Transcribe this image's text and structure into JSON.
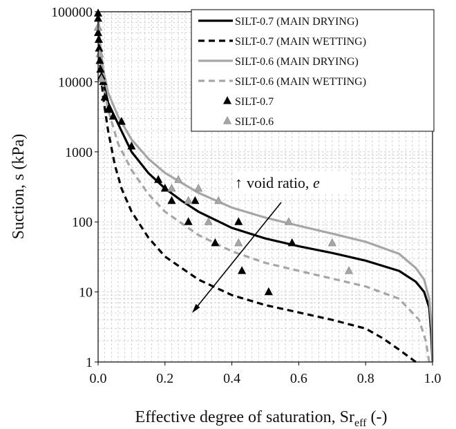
{
  "chart_data": {
    "type": "scatter",
    "xlabel": "Effective degree of saturation, Sr",
    "xlabel_sub": "eff",
    "xlabel_tail": " (-)",
    "ylabel": "Suction, s (kPa)",
    "xlim": [
      0,
      1
    ],
    "ylim": [
      1,
      100000
    ],
    "yscale": "log",
    "x_ticks": [
      "0.0",
      "0.2",
      "0.4",
      "0.6",
      "0.8",
      "1.0"
    ],
    "y_ticks": [
      "1",
      "10",
      "100",
      "1000",
      "10000",
      "100000"
    ],
    "grid": "dashed, vertical minor every 0.02, horizontal log minor",
    "legend_position": "top-right",
    "annotation": {
      "arrow": "↑",
      "text": "void ratio, ",
      "italic": "e"
    },
    "colors": {
      "silt07": "#000000",
      "silt06": "#a6a6a6",
      "grid": "#c8c8c8"
    },
    "series": [
      {
        "name": "SILT-0.7 (MAIN DRYING)",
        "kind": "line",
        "style": "solid",
        "color": "#000000",
        "points": [
          [
            1.0,
            1
          ],
          [
            0.995,
            3
          ],
          [
            0.99,
            6
          ],
          [
            0.975,
            10
          ],
          [
            0.95,
            14
          ],
          [
            0.9,
            20
          ],
          [
            0.8,
            28
          ],
          [
            0.7,
            36
          ],
          [
            0.6,
            45
          ],
          [
            0.5,
            58
          ],
          [
            0.4,
            82
          ],
          [
            0.3,
            140
          ],
          [
            0.25,
            200
          ],
          [
            0.2,
            300
          ],
          [
            0.15,
            500
          ],
          [
            0.1,
            1000
          ],
          [
            0.06,
            2500
          ],
          [
            0.03,
            5000
          ],
          [
            0.015,
            10000
          ],
          [
            0.005,
            30000
          ],
          [
            0.0,
            100000
          ]
        ]
      },
      {
        "name": "SILT-0.7 (MAIN WETTING)",
        "kind": "line",
        "style": "dashed",
        "color": "#000000",
        "points": [
          [
            0.95,
            1
          ],
          [
            0.9,
            1.5
          ],
          [
            0.85,
            2.2
          ],
          [
            0.8,
            3
          ],
          [
            0.7,
            4
          ],
          [
            0.6,
            5.1
          ],
          [
            0.5,
            6.5
          ],
          [
            0.4,
            9
          ],
          [
            0.3,
            15
          ],
          [
            0.2,
            32
          ],
          [
            0.15,
            60
          ],
          [
            0.1,
            140
          ],
          [
            0.07,
            300
          ],
          [
            0.05,
            650
          ],
          [
            0.03,
            2000
          ],
          [
            0.015,
            6000
          ],
          [
            0.005,
            20000
          ],
          [
            0.0,
            100000
          ]
        ]
      },
      {
        "name": "SILT-0.6 (MAIN DRYING)",
        "kind": "line",
        "style": "solid",
        "color": "#a6a6a6",
        "points": [
          [
            1.0,
            1
          ],
          [
            0.998,
            3
          ],
          [
            0.99,
            8
          ],
          [
            0.975,
            15
          ],
          [
            0.95,
            22
          ],
          [
            0.9,
            35
          ],
          [
            0.8,
            52
          ],
          [
            0.7,
            68
          ],
          [
            0.6,
            88
          ],
          [
            0.5,
            115
          ],
          [
            0.4,
            160
          ],
          [
            0.3,
            260
          ],
          [
            0.2,
            500
          ],
          [
            0.15,
            800
          ],
          [
            0.1,
            1500
          ],
          [
            0.06,
            3200
          ],
          [
            0.03,
            7000
          ],
          [
            0.015,
            15000
          ],
          [
            0.005,
            40000
          ],
          [
            0.0,
            100000
          ]
        ]
      },
      {
        "name": "SILT-0.6 (MAIN WETTING)",
        "kind": "line",
        "style": "dashed",
        "color": "#a6a6a6",
        "points": [
          [
            0.99,
            1
          ],
          [
            0.98,
            2
          ],
          [
            0.96,
            4
          ],
          [
            0.9,
            8
          ],
          [
            0.8,
            12
          ],
          [
            0.7,
            15.5
          ],
          [
            0.6,
            20
          ],
          [
            0.5,
            26
          ],
          [
            0.4,
            38
          ],
          [
            0.3,
            65
          ],
          [
            0.2,
            140
          ],
          [
            0.15,
            250
          ],
          [
            0.1,
            550
          ],
          [
            0.06,
            1300
          ],
          [
            0.03,
            4000
          ],
          [
            0.015,
            9000
          ],
          [
            0.005,
            30000
          ],
          [
            0.0,
            100000
          ]
        ]
      },
      {
        "name": "SILT-0.7",
        "kind": "marker",
        "marker": "triangle",
        "color": "#000000",
        "points": [
          [
            0.0,
            95000
          ],
          [
            0.0,
            80000
          ],
          [
            0.0,
            60000
          ],
          [
            0.0,
            50000
          ],
          [
            0.002,
            40000
          ],
          [
            0.003,
            30000
          ],
          [
            0.005,
            20000
          ],
          [
            0.007,
            15000
          ],
          [
            0.01,
            12000
          ],
          [
            0.015,
            10000
          ],
          [
            0.02,
            6000
          ],
          [
            0.03,
            4000
          ],
          [
            0.045,
            3200
          ],
          [
            0.07,
            2700
          ],
          [
            0.1,
            1200
          ],
          [
            0.18,
            400
          ],
          [
            0.2,
            300
          ],
          [
            0.22,
            200
          ],
          [
            0.27,
            100
          ],
          [
            0.29,
            200
          ],
          [
            0.35,
            50
          ],
          [
            0.42,
            100
          ],
          [
            0.43,
            20
          ],
          [
            0.51,
            10
          ],
          [
            0.58,
            50
          ]
        ]
      },
      {
        "name": "SILT-0.6",
        "kind": "marker",
        "marker": "triangle",
        "color": "#a6a6a6",
        "points": [
          [
            0.0,
            60000
          ],
          [
            0.005,
            25000
          ],
          [
            0.01,
            11000
          ],
          [
            0.22,
            300
          ],
          [
            0.24,
            400
          ],
          [
            0.27,
            200
          ],
          [
            0.3,
            300
          ],
          [
            0.33,
            100
          ],
          [
            0.36,
            200
          ],
          [
            0.42,
            50
          ],
          [
            0.57,
            100
          ],
          [
            0.7,
            50
          ],
          [
            0.75,
            20
          ]
        ]
      }
    ]
  }
}
